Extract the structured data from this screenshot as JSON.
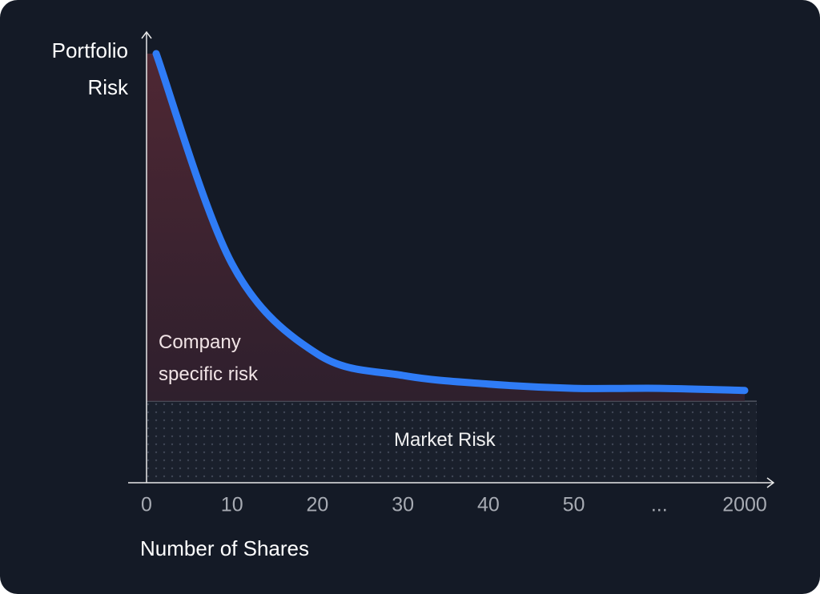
{
  "chart_data": {
    "type": "line",
    "y_label": "Portfolio Risk",
    "x_label": "Number of Shares",
    "categories": [
      "0",
      "10",
      "20",
      "30",
      "40",
      "50",
      "...",
      "2000"
    ],
    "series": [
      {
        "name": "Company specific risk",
        "color": "#2f7cf6",
        "values": [
          100,
          51,
          30,
          25,
          23,
          22,
          22,
          21.5
        ]
      }
    ],
    "market_risk": 19,
    "market_label": "Market Risk",
    "ylim": [
      0,
      100
    ]
  }
}
